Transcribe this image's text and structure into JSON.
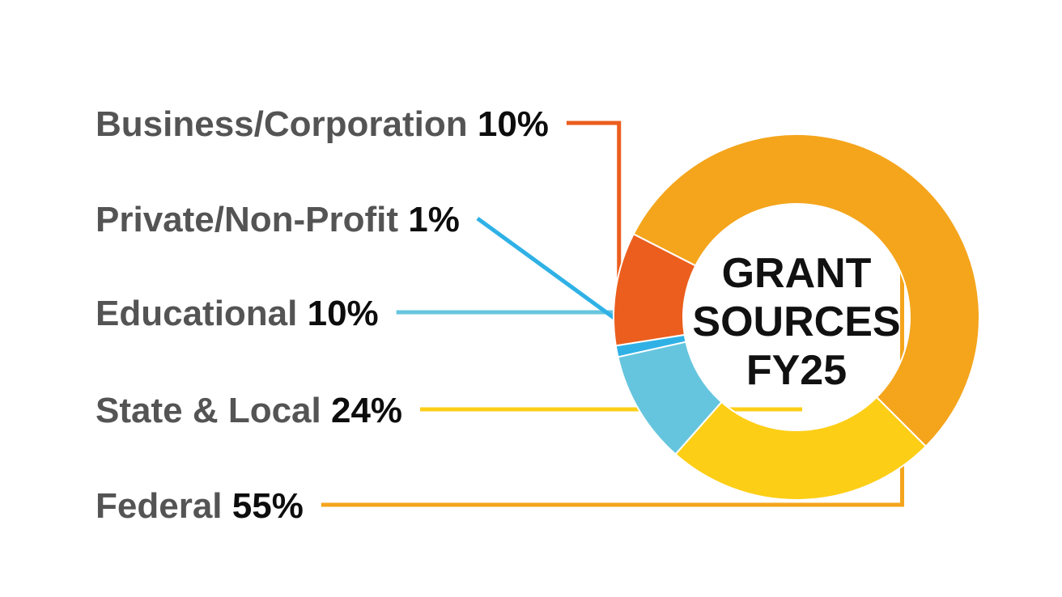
{
  "chart_data": {
    "type": "pie",
    "variant": "donut",
    "center_title_lines": [
      "GRANT",
      "SOURCES",
      "FY25"
    ],
    "slices": [
      {
        "label": "Federal",
        "value": 55,
        "value_label": "55%",
        "color": "#F4A51C"
      },
      {
        "label": "State & Local",
        "value": 24,
        "value_label": "24%",
        "color": "#FDCE16"
      },
      {
        "label": "Educational",
        "value": 10,
        "value_label": "10%",
        "color": "#66C5DE"
      },
      {
        "label": "Private/Non-Profit",
        "value": 1,
        "value_label": "1%",
        "color": "#2FB1E6"
      },
      {
        "label": "Business/Corporation",
        "value": 10,
        "value_label": "10%",
        "color": "#EB5E1D"
      }
    ],
    "legend": "left"
  }
}
